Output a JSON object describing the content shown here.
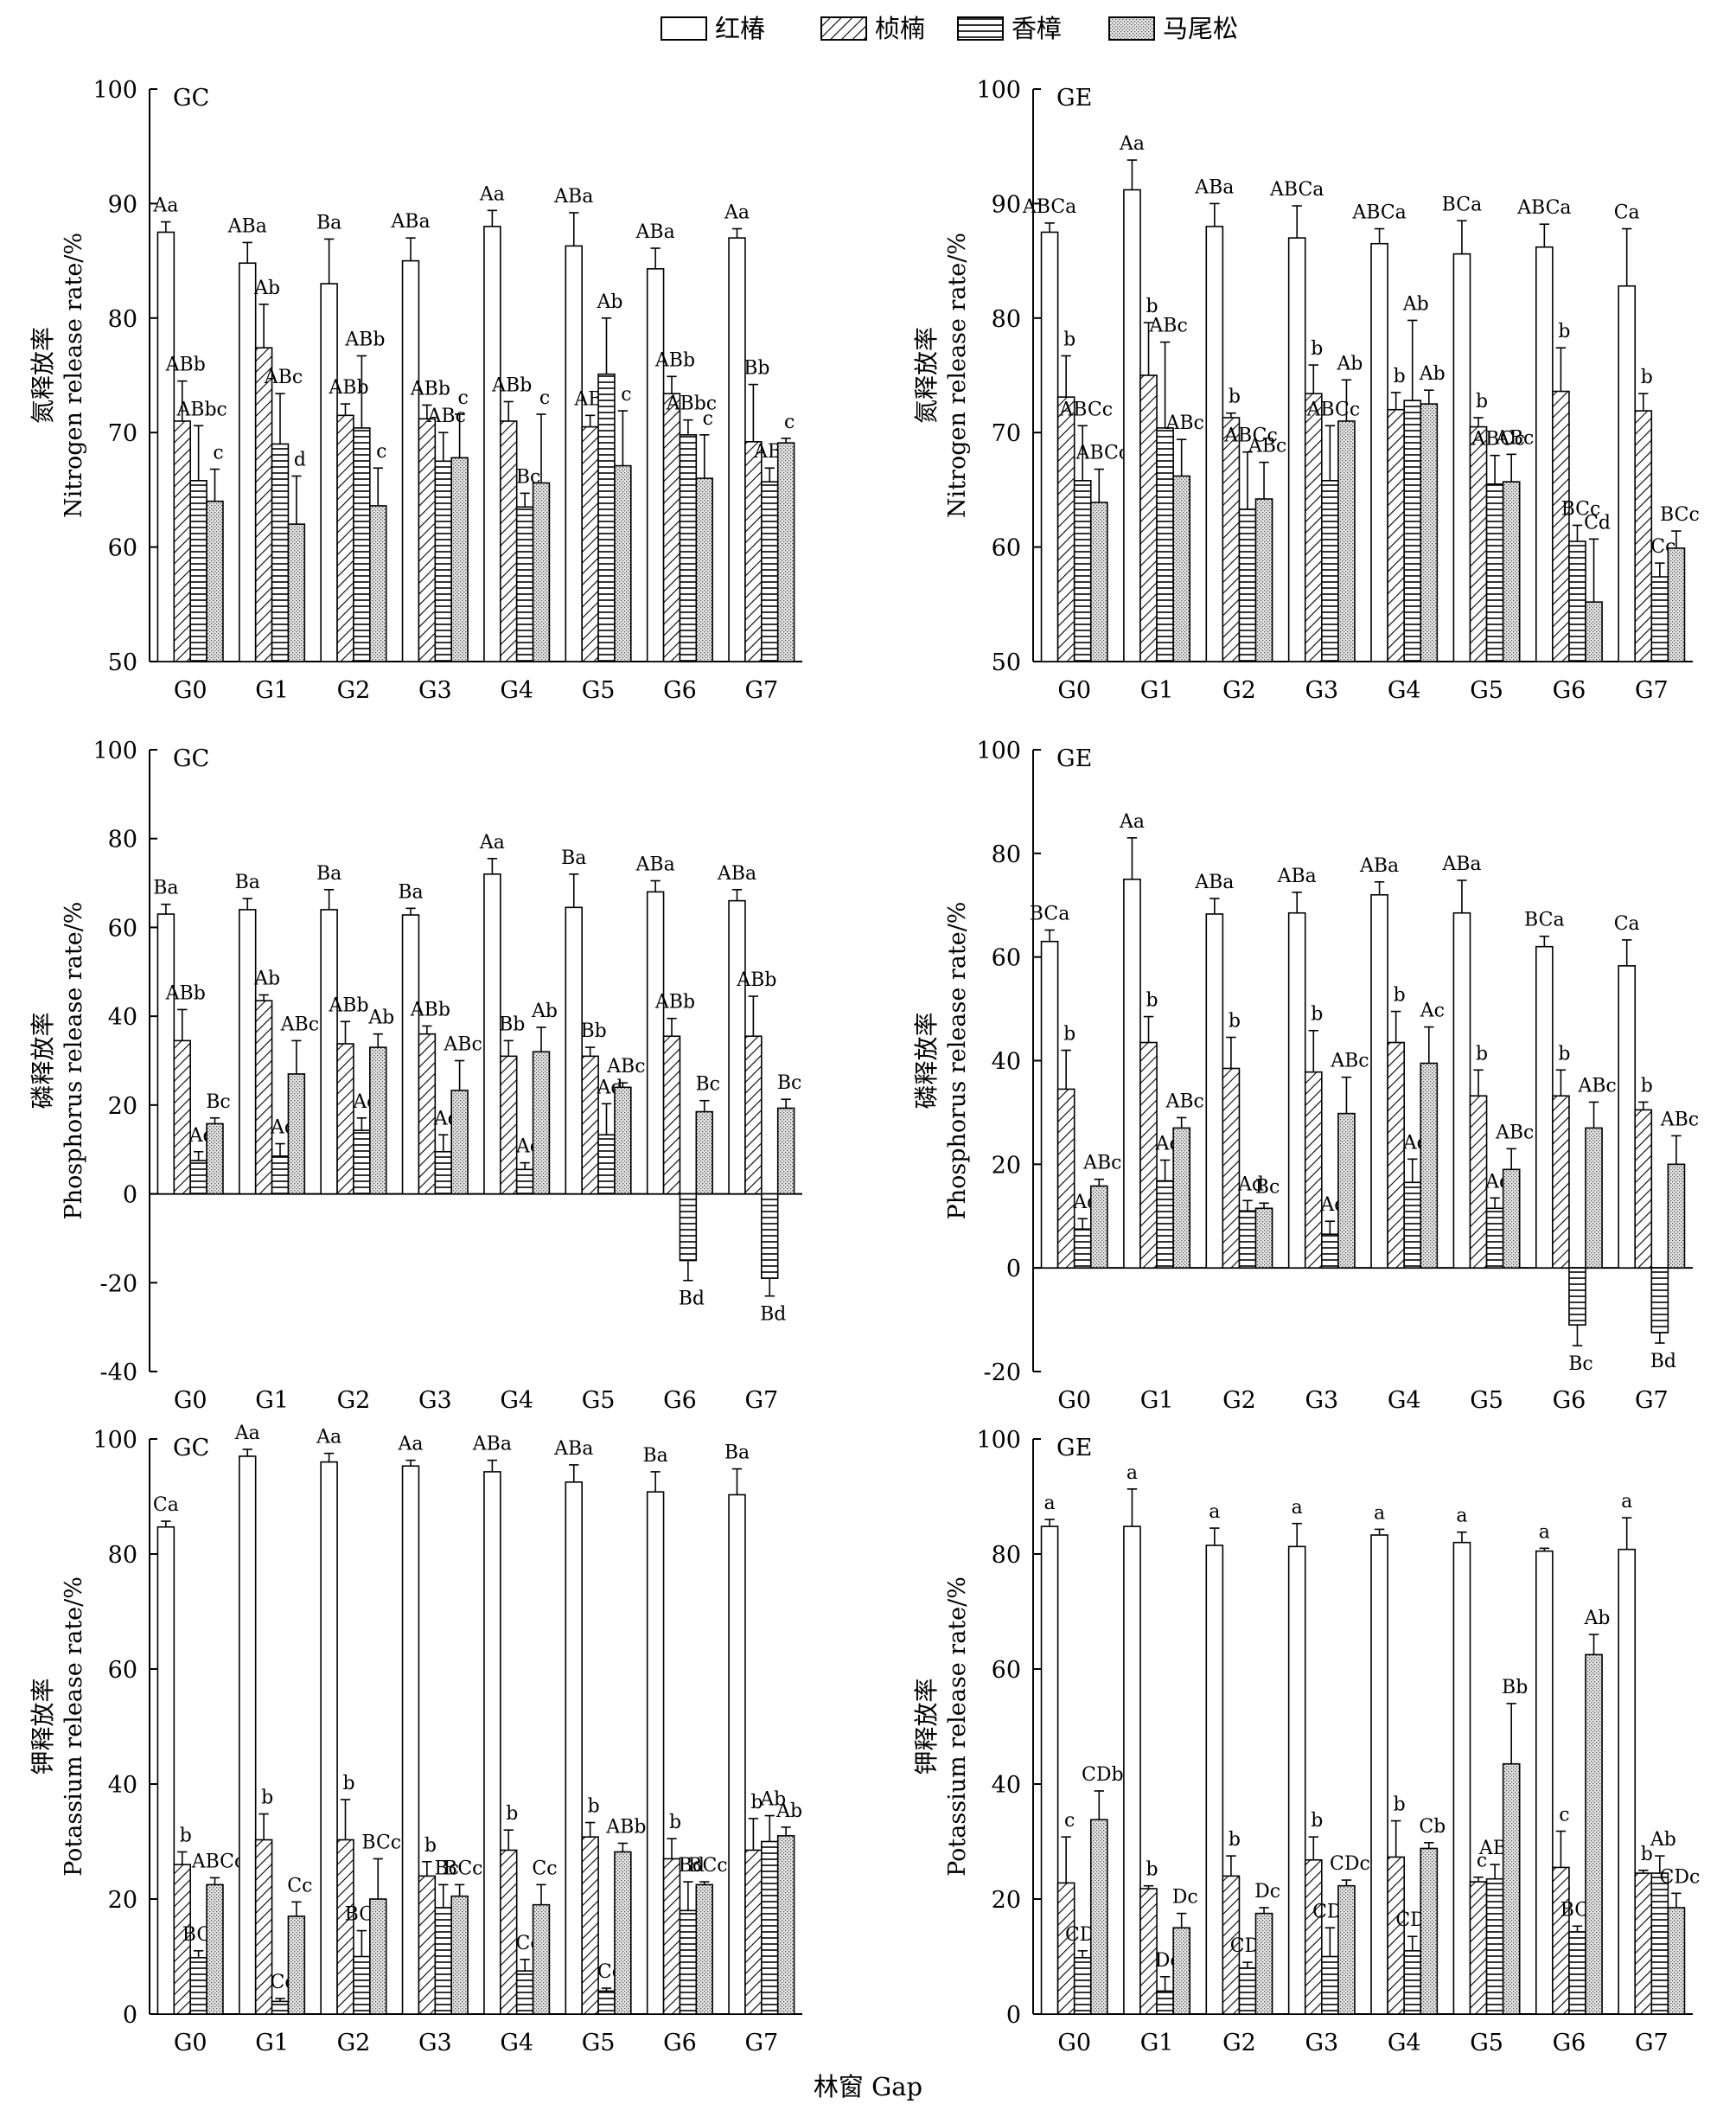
{
  "legend": [
    {
      "name": "红椿",
      "pattern": "open"
    },
    {
      "name": "桢楠",
      "pattern": "diag"
    },
    {
      "name": "香樟",
      "pattern": "horiz"
    },
    {
      "name": "马尾松",
      "pattern": "dots"
    }
  ],
  "x_axis_label": "林窗 Gap",
  "chart_data": [
    {
      "type": "bar",
      "panel_label": "GC",
      "ylabel_cn": "氮释放率",
      "ylabel_en": "Nitrogen release rate/%",
      "ylim": [
        50,
        100
      ],
      "yticks": [
        50,
        60,
        70,
        80,
        90,
        100
      ],
      "categories": [
        "G0",
        "G1",
        "G2",
        "G3",
        "G4",
        "G5",
        "G6",
        "G7"
      ],
      "series": [
        {
          "name": "红椿",
          "values": [
            87.5,
            84.8,
            83.0,
            85.0,
            88.0,
            86.3,
            84.3,
            87.0
          ],
          "errors": [
            0.9,
            1.8,
            3.9,
            2.0,
            1.4,
            2.9,
            1.8,
            0.8
          ],
          "labels": [
            "Aa",
            "ABa",
            "Ba",
            "ABa",
            "Aa",
            "ABa",
            "ABa",
            "Aa"
          ]
        },
        {
          "name": "桢楠",
          "values": [
            71.0,
            77.4,
            71.5,
            71.2,
            71.0,
            70.5,
            73.4,
            69.2
          ],
          "errors": [
            3.5,
            3.8,
            1.0,
            1.2,
            1.7,
            1.0,
            1.5,
            5.0
          ],
          "labels": [
            "ABb",
            "Ab",
            "ABb",
            "ABb",
            "ABb",
            "ABc",
            "ABb",
            "Bb"
          ]
        },
        {
          "name": "香樟",
          "values": [
            65.8,
            69.0,
            70.4,
            67.5,
            63.5,
            75.1,
            69.8,
            65.7
          ],
          "errors": [
            4.8,
            4.4,
            6.3,
            2.5,
            1.2,
            4.9,
            1.3,
            1.2
          ],
          "labels": [
            "ABbc",
            "ABc",
            "ABb",
            "ABc",
            "Bc",
            "Ab",
            "ABbc",
            "ABc"
          ]
        },
        {
          "name": "马尾松",
          "values": [
            64.0,
            62.0,
            63.6,
            67.8,
            65.6,
            67.1,
            66.0,
            69.1
          ],
          "errors": [
            2.8,
            4.2,
            3.3,
            3.8,
            6.0,
            4.8,
            3.8,
            0.4
          ],
          "labels": [
            "c",
            "d",
            "c",
            "c",
            "c",
            "c",
            "c",
            "c"
          ]
        }
      ]
    },
    {
      "type": "bar",
      "panel_label": "GE",
      "ylabel_cn": "氮释放率",
      "ylabel_en": "Nitrogen release rate/%",
      "ylim": [
        50,
        100
      ],
      "yticks": [
        50,
        60,
        70,
        80,
        90,
        100
      ],
      "categories": [
        "G0",
        "G1",
        "G2",
        "G3",
        "G4",
        "G5",
        "G6",
        "G7"
      ],
      "series": [
        {
          "name": "红椿",
          "values": [
            87.5,
            91.2,
            88.0,
            87.0,
            86.5,
            85.6,
            86.2,
            82.8
          ],
          "errors": [
            0.8,
            2.6,
            2.0,
            2.8,
            1.3,
            2.9,
            2.0,
            5.0
          ],
          "labels": [
            "ABCa",
            "Aa",
            "ABa",
            "ABCa",
            "ABCa",
            "BCa",
            "ABCa",
            "Ca"
          ]
        },
        {
          "name": "桢楠",
          "values": [
            73.1,
            75.0,
            71.3,
            73.4,
            72.0,
            70.5,
            73.6,
            71.9
          ],
          "errors": [
            3.6,
            4.6,
            0.4,
            2.5,
            1.5,
            0.8,
            3.8,
            1.5
          ],
          "labels": [
            "b",
            "b",
            "b",
            "b",
            "b",
            "b",
            "b",
            "b"
          ]
        },
        {
          "name": "香樟",
          "values": [
            65.8,
            70.4,
            63.3,
            65.8,
            72.8,
            65.5,
            60.5,
            57.4
          ],
          "errors": [
            4.8,
            7.5,
            5.0,
            4.8,
            7.0,
            2.5,
            1.4,
            1.2
          ],
          "labels": [
            "ABCc",
            "ABc",
            "ABCc",
            "ABCc",
            "Ab",
            "ABCc",
            "BCc",
            "Cc"
          ]
        },
        {
          "name": "马尾松",
          "values": [
            63.9,
            66.2,
            64.2,
            71.0,
            72.5,
            65.7,
            55.2,
            59.9
          ],
          "errors": [
            2.9,
            3.2,
            3.2,
            3.6,
            1.2,
            2.4,
            5.5,
            1.5
          ],
          "labels": [
            "ABCc",
            "ABc",
            "ABc",
            "Ab",
            "Ab",
            "ABc",
            "Cd",
            "BCc"
          ]
        }
      ]
    },
    {
      "type": "bar",
      "panel_label": "GC",
      "ylabel_cn": "磷释放率",
      "ylabel_en": "Phosphorus release rate/%",
      "ylim": [
        -40,
        100
      ],
      "yticks": [
        -40,
        -20,
        0,
        20,
        40,
        60,
        80,
        100
      ],
      "categories": [
        "G0",
        "G1",
        "G2",
        "G3",
        "G4",
        "G5",
        "G6",
        "G7"
      ],
      "series": [
        {
          "name": "红椿",
          "values": [
            63.0,
            64.0,
            64.0,
            62.8,
            72.0,
            64.5,
            68.0,
            66.0
          ],
          "errors": [
            2.2,
            2.5,
            4.5,
            1.5,
            3.5,
            7.5,
            2.5,
            2.5
          ],
          "labels": [
            "Ba",
            "Ba",
            "Ba",
            "Ba",
            "Aa",
            "Ba",
            "ABa",
            "ABa"
          ]
        },
        {
          "name": "桢楠",
          "values": [
            34.5,
            43.5,
            33.8,
            36.0,
            31.0,
            31.0,
            35.5,
            35.5
          ],
          "errors": [
            7.0,
            1.3,
            5.0,
            1.8,
            3.5,
            2.0,
            4.0,
            9.0
          ],
          "labels": [
            "ABb",
            "Ab",
            "ABb",
            "ABb",
            "Bb",
            "Bb",
            "ABb",
            "ABb"
          ]
        },
        {
          "name": "香樟",
          "values": [
            7.5,
            8.5,
            14.3,
            9.5,
            5.5,
            13.3,
            -15.0,
            -19.0
          ],
          "errors": [
            2.0,
            2.8,
            2.8,
            3.8,
            1.5,
            7.0,
            4.5,
            4.0
          ],
          "labels": [
            "Ad",
            "Ad",
            "Ac",
            "Ad",
            "Ac",
            "Ad",
            "Bd",
            "Bd"
          ]
        },
        {
          "name": "马尾松",
          "values": [
            15.8,
            27.0,
            33.0,
            23.3,
            32.0,
            24.0,
            18.5,
            19.3
          ],
          "errors": [
            1.3,
            7.5,
            3.0,
            6.7,
            5.5,
            1.0,
            2.5,
            2.0
          ],
          "labels": [
            "Bc",
            "ABc",
            "Ab",
            "ABc",
            "Ab",
            "ABc",
            "Bc",
            "Bc"
          ]
        }
      ]
    },
    {
      "type": "bar",
      "panel_label": "GE",
      "ylabel_cn": "磷释放率",
      "ylabel_en": "Phosphorus release rate/%",
      "ylim": [
        -20,
        100
      ],
      "yticks": [
        -20,
        0,
        20,
        40,
        60,
        80,
        100
      ],
      "categories": [
        "G0",
        "G1",
        "G2",
        "G3",
        "G4",
        "G5",
        "G6",
        "G7"
      ],
      "series": [
        {
          "name": "红椿",
          "values": [
            63.0,
            75.0,
            68.3,
            68.5,
            72.0,
            68.5,
            62.0,
            58.3
          ],
          "errors": [
            2.2,
            8.0,
            3.0,
            4.0,
            2.5,
            6.3,
            2.0,
            5.0
          ],
          "labels": [
            "BCa",
            "Aa",
            "ABa",
            "ABa",
            "ABa",
            "ABa",
            "BCa",
            "Ca"
          ]
        },
        {
          "name": "桢楠",
          "values": [
            34.5,
            43.5,
            38.5,
            37.8,
            43.5,
            33.2,
            33.2,
            30.5
          ],
          "errors": [
            7.5,
            5.0,
            6.0,
            8.0,
            6.0,
            5.0,
            5.0,
            1.5
          ],
          "labels": [
            "b",
            "b",
            "b",
            "b",
            "b",
            "b",
            "b",
            "b"
          ]
        },
        {
          "name": "香樟",
          "values": [
            7.5,
            16.8,
            11.0,
            6.5,
            16.5,
            11.5,
            -11.0,
            -12.5
          ],
          "errors": [
            2.0,
            4.0,
            2.0,
            2.5,
            4.5,
            2.0,
            4.0,
            2.0
          ],
          "labels": [
            "Ad",
            "Ad",
            "Ad",
            "Ad",
            "Ad",
            "Ad",
            "Bc",
            "Bd"
          ]
        },
        {
          "name": "马尾松",
          "values": [
            15.8,
            27.0,
            11.5,
            29.8,
            39.5,
            19.0,
            27.0,
            20.0
          ],
          "errors": [
            1.3,
            2.0,
            1.0,
            7.0,
            7.0,
            4.0,
            5.0,
            5.5
          ],
          "labels": [
            "ABc",
            "ABc",
            "Bc",
            "ABc",
            "Ac",
            "ABc",
            "ABc",
            "ABc"
          ]
        }
      ]
    },
    {
      "type": "bar",
      "panel_label": "GC",
      "ylabel_cn": "钾释放率",
      "ylabel_en": "Potassium release rate/%",
      "ylim": [
        0,
        100
      ],
      "yticks": [
        0,
        20,
        40,
        60,
        80,
        100
      ],
      "categories": [
        "G0",
        "G1",
        "G2",
        "G3",
        "G4",
        "G5",
        "G6",
        "G7"
      ],
      "series": [
        {
          "name": "红椿",
          "values": [
            84.7,
            97.0,
            96.0,
            95.3,
            94.3,
            92.5,
            90.8,
            90.3
          ],
          "errors": [
            1.0,
            1.2,
            1.5,
            1.0,
            2.0,
            3.0,
            3.5,
            4.5
          ],
          "labels": [
            "Ca",
            "Aa",
            "Aa",
            "Aa",
            "ABa",
            "ABa",
            "Ba",
            "Ba"
          ]
        },
        {
          "name": "桢楠",
          "values": [
            26.0,
            30.3,
            30.3,
            24.0,
            28.5,
            30.8,
            27.0,
            28.5
          ],
          "errors": [
            2.2,
            4.5,
            7.0,
            2.5,
            3.5,
            2.5,
            3.5,
            5.5
          ],
          "labels": [
            "b",
            "b",
            "b",
            "b",
            "b",
            "b",
            "b",
            "b"
          ]
        },
        {
          "name": "香樟",
          "values": [
            9.8,
            2.2,
            10.0,
            18.5,
            7.5,
            4.0,
            18.0,
            30.0
          ],
          "errors": [
            1.2,
            0.5,
            4.5,
            4.0,
            2.0,
            0.5,
            5.0,
            4.5
          ],
          "labels": [
            "BCc",
            "Cd",
            "BCd",
            "Bc",
            "Cc",
            "Cc",
            "Bd",
            "Ab"
          ]
        },
        {
          "name": "马尾松",
          "values": [
            22.5,
            17.0,
            20.0,
            20.5,
            19.0,
            28.2,
            22.5,
            31.0
          ],
          "errors": [
            1.2,
            2.5,
            7.0,
            2.0,
            3.5,
            1.5,
            0.5,
            1.5
          ],
          "labels": [
            "ABCc",
            "Cc",
            "BCc",
            "BCc",
            "Cc",
            "ABb",
            "BCc",
            "Ab"
          ]
        }
      ]
    },
    {
      "type": "bar",
      "panel_label": "GE",
      "ylabel_cn": "钾释放率",
      "ylabel_en": "Potassium release rate/%",
      "ylim": [
        0,
        100
      ],
      "yticks": [
        0,
        20,
        40,
        60,
        80,
        100
      ],
      "categories": [
        "G0",
        "G1",
        "G2",
        "G3",
        "G4",
        "G5",
        "G6",
        "G7"
      ],
      "series": [
        {
          "name": "红椿",
          "values": [
            84.8,
            84.8,
            81.5,
            81.3,
            83.3,
            82.0,
            80.5,
            80.8
          ],
          "errors": [
            1.2,
            6.5,
            3.0,
            4.0,
            1.0,
            1.8,
            0.5,
            5.5
          ],
          "labels": [
            "a",
            "a",
            "a",
            "a",
            "a",
            "a",
            "a",
            "a"
          ]
        },
        {
          "name": "桢楠",
          "values": [
            22.8,
            21.8,
            24.0,
            26.8,
            27.3,
            23.0,
            25.5,
            24.5
          ],
          "errors": [
            8.0,
            0.5,
            3.5,
            4.0,
            6.3,
            0.8,
            6.3,
            0.5
          ],
          "labels": [
            "c",
            "b",
            "b",
            "b",
            "b",
            "c",
            "c",
            "b"
          ]
        },
        {
          "name": "香樟",
          "values": [
            9.8,
            4.0,
            8.0,
            10.0,
            11.0,
            23.5,
            14.3,
            24.5
          ],
          "errors": [
            1.2,
            2.5,
            1.0,
            5.0,
            2.5,
            2.5,
            1.0,
            3.0
          ],
          "labels": [
            "CDd",
            "Dd",
            "CDd",
            "CDd",
            "CDc",
            "ABc",
            "BCd",
            "Ab"
          ]
        },
        {
          "name": "马尾松",
          "values": [
            33.8,
            15.0,
            17.5,
            22.3,
            28.8,
            43.5,
            62.5,
            18.5
          ],
          "errors": [
            5.0,
            2.5,
            1.0,
            1.0,
            1.0,
            10.5,
            3.5,
            2.5
          ],
          "labels": [
            "CDb",
            "Dc",
            "Dc",
            "CDc",
            "Cb",
            "Bb",
            "Ab",
            "CDc"
          ]
        }
      ]
    }
  ]
}
